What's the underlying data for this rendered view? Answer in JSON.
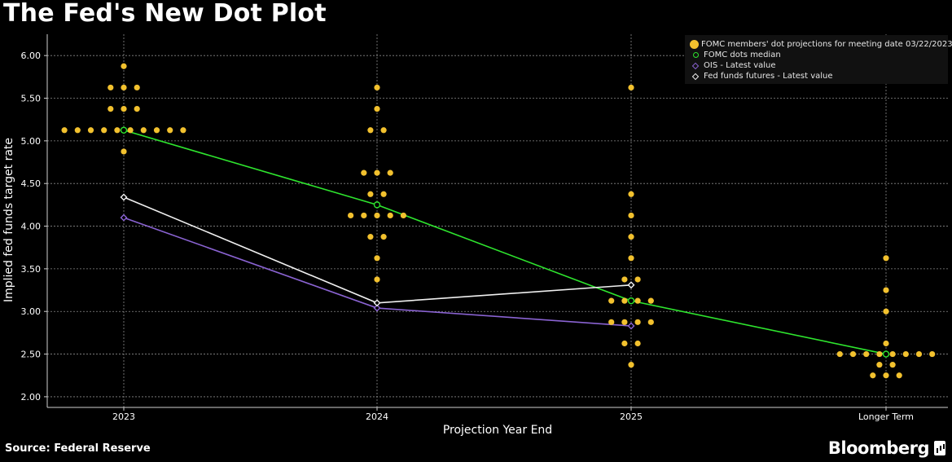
{
  "header": {
    "title": "The Fed's New Dot Plot"
  },
  "footer": {
    "source": "Source: Federal Reserve",
    "brand": "Bloomberg"
  },
  "legend": {
    "items": [
      {
        "label": "FOMC members' dot projections for meeting date 03/22/2023",
        "symbol": "dot",
        "color": "#f2c12e"
      },
      {
        "label": "FOMC dots median",
        "symbol": "ring",
        "color": "#2ee52e"
      },
      {
        "label": "OIS - Latest value",
        "symbol": "diamond",
        "color": "#8a63d2"
      },
      {
        "label": "Fed funds futures - Latest value",
        "symbol": "diamond",
        "color": "#f0f0f0"
      }
    ]
  },
  "chart_data": {
    "type": "scatter",
    "title": "The Fed's New Dot Plot",
    "xlabel": "Projection Year End",
    "ylabel": "Implied fed funds target rate",
    "categories": [
      "2023",
      "2024",
      "2025",
      "Longer Term"
    ],
    "ylim": [
      1.875,
      6.25
    ],
    "yticks": [
      "2.00",
      "2.50",
      "3.00",
      "3.50",
      "4.00",
      "4.50",
      "5.00",
      "5.50",
      "6.00"
    ],
    "ytick_values": [
      2.0,
      2.5,
      3.0,
      3.5,
      4.0,
      4.5,
      5.0,
      5.5,
      6.0
    ],
    "grid": true,
    "legend_position": "top-right",
    "dots": [
      {
        "category": "2023",
        "levels": [
          {
            "rate": 5.875,
            "count": 1
          },
          {
            "rate": 5.625,
            "count": 3
          },
          {
            "rate": 5.375,
            "count": 3
          },
          {
            "rate": 5.125,
            "count": 10
          },
          {
            "rate": 4.875,
            "count": 1
          }
        ]
      },
      {
        "category": "2024",
        "levels": [
          {
            "rate": 5.625,
            "count": 1
          },
          {
            "rate": 5.375,
            "count": 1
          },
          {
            "rate": 5.125,
            "count": 2
          },
          {
            "rate": 4.625,
            "count": 3
          },
          {
            "rate": 4.375,
            "count": 2
          },
          {
            "rate": 4.125,
            "count": 5
          },
          {
            "rate": 3.875,
            "count": 2
          },
          {
            "rate": 3.625,
            "count": 1
          },
          {
            "rate": 3.375,
            "count": 1
          }
        ]
      },
      {
        "category": "2025",
        "levels": [
          {
            "rate": 5.625,
            "count": 1
          },
          {
            "rate": 4.375,
            "count": 1
          },
          {
            "rate": 4.125,
            "count": 1
          },
          {
            "rate": 3.875,
            "count": 1
          },
          {
            "rate": 3.625,
            "count": 1
          },
          {
            "rate": 3.375,
            "count": 2
          },
          {
            "rate": 3.125,
            "count": 4
          },
          {
            "rate": 2.875,
            "count": 4
          },
          {
            "rate": 2.625,
            "count": 2
          },
          {
            "rate": 2.375,
            "count": 1
          }
        ]
      },
      {
        "category": "Longer Term",
        "levels": [
          {
            "rate": 3.625,
            "count": 1
          },
          {
            "rate": 3.25,
            "count": 1
          },
          {
            "rate": 3.0,
            "count": 1
          },
          {
            "rate": 2.625,
            "count": 1
          },
          {
            "rate": 2.5,
            "count": 8
          },
          {
            "rate": 2.375,
            "count": 2
          },
          {
            "rate": 2.25,
            "count": 3
          }
        ]
      }
    ],
    "series": [
      {
        "name": "FOMC dots median",
        "color": "#2ee52e",
        "marker": "ring",
        "x": [
          "2023",
          "2024",
          "2025",
          "Longer Term"
        ],
        "values": [
          5.125,
          4.25,
          3.125,
          2.5
        ]
      },
      {
        "name": "OIS - Latest value",
        "color": "#8a63d2",
        "marker": "diamond",
        "x": [
          "2023",
          "2024",
          "2025"
        ],
        "values": [
          4.1,
          3.04,
          2.83
        ]
      },
      {
        "name": "Fed funds futures - Latest value",
        "color": "#f0f0f0",
        "marker": "diamond",
        "x": [
          "2023",
          "2024",
          "2025"
        ],
        "values": [
          4.34,
          3.1,
          3.31
        ]
      }
    ]
  }
}
